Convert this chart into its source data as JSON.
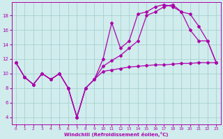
{
  "background_color": "#d0ecec",
  "grid_color": "#a0cccc",
  "line_color": "#aa00aa",
  "xlabel": "Windchill (Refroidissement éolien,°C)",
  "xlim": [
    -0.5,
    23.5
  ],
  "ylim": [
    3.0,
    19.8
  ],
  "yticks": [
    4,
    6,
    8,
    10,
    12,
    14,
    16,
    18
  ],
  "xticks": [
    0,
    1,
    2,
    3,
    4,
    5,
    6,
    7,
    8,
    9,
    10,
    11,
    12,
    13,
    14,
    15,
    16,
    17,
    18,
    19,
    20,
    21,
    22,
    23
  ],
  "series1_x": [
    0,
    1,
    2,
    3,
    4,
    5,
    6,
    7,
    8,
    9,
    10,
    11,
    12,
    13,
    14,
    15,
    16,
    17,
    18,
    19,
    20,
    21,
    22,
    23
  ],
  "series1_y": [
    11.5,
    9.5,
    8.5,
    10.0,
    9.2,
    10.0,
    8.0,
    4.0,
    8.0,
    9.2,
    10.3,
    10.5,
    10.7,
    10.9,
    11.0,
    11.1,
    11.2,
    11.2,
    11.3,
    11.4,
    11.4,
    11.5,
    11.5,
    11.5
  ],
  "series2_x": [
    0,
    1,
    2,
    3,
    4,
    5,
    6,
    7,
    8,
    9,
    10,
    11,
    12,
    13,
    14,
    15,
    16,
    17,
    18,
    19,
    20,
    21,
    22,
    23
  ],
  "series2_y": [
    11.5,
    9.5,
    8.5,
    10.0,
    9.2,
    10.0,
    8.0,
    4.0,
    8.0,
    9.2,
    12.0,
    17.0,
    13.5,
    14.5,
    18.2,
    18.5,
    19.2,
    19.5,
    19.2,
    18.5,
    16.0,
    14.5,
    14.5,
    11.5
  ],
  "series3_x": [
    0,
    1,
    2,
    3,
    4,
    5,
    6,
    7,
    8,
    9,
    10,
    11,
    12,
    13,
    14,
    15,
    16,
    17,
    18,
    19,
    20,
    21,
    22,
    23
  ],
  "series3_y": [
    11.5,
    9.5,
    8.5,
    10.0,
    9.2,
    10.0,
    8.0,
    4.0,
    8.0,
    9.2,
    11.0,
    11.8,
    12.5,
    13.5,
    14.5,
    18.0,
    18.5,
    19.2,
    19.5,
    18.5,
    18.2,
    16.5,
    14.5,
    11.5
  ]
}
